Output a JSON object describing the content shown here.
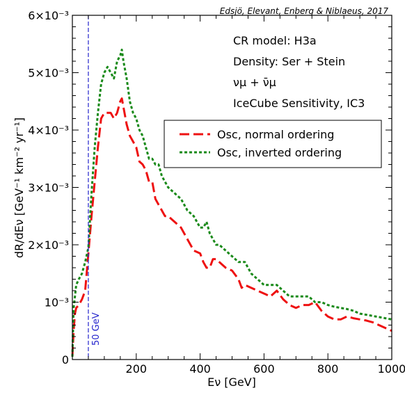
{
  "chart_data": {
    "type": "line",
    "credit": "Edsjö, Elevant, Enberg & Niblaeus, 2017",
    "xlabel": "Eν [GeV]",
    "ylabel": "dR/dEν [GeV⁻¹ km⁻² yr⁻¹]",
    "xlim": [
      0,
      1000
    ],
    "ylim": [
      0,
      0.006
    ],
    "xticks": [
      {
        "value": 200,
        "label": "200"
      },
      {
        "value": 400,
        "label": "400"
      },
      {
        "value": 600,
        "label": "600"
      },
      {
        "value": 800,
        "label": "800"
      },
      {
        "value": 1000,
        "label": "1000"
      }
    ],
    "yticks": [
      {
        "value": 0,
        "label": "0"
      },
      {
        "value": 0.001,
        "label": "10⁻³"
      },
      {
        "value": 0.002,
        "label": "2×10⁻³"
      },
      {
        "value": 0.003,
        "label": "3×10⁻³"
      },
      {
        "value": 0.004,
        "label": "4×10⁻³"
      },
      {
        "value": 0.005,
        "label": "5×10⁻³"
      },
      {
        "value": 0.006,
        "label": "6×10⁻³"
      }
    ],
    "annotations": [
      "CR model: H3a",
      "Density: Ser + Stein",
      "νμ + ν̄μ",
      "IceCube Sensitivity, IC3"
    ],
    "vline": {
      "x": 50,
      "label": "50 GeV",
      "color": "#2222cc"
    },
    "legend_position": "upper-right",
    "series": [
      {
        "name": "Osc, normal ordering",
        "color": "#ee1111",
        "style": "dashed",
        "x": [
          0,
          4,
          8,
          12,
          20,
          30,
          40,
          50,
          60,
          70,
          80,
          90,
          100,
          110,
          120,
          130,
          140,
          150,
          155,
          160,
          170,
          180,
          190,
          200,
          210,
          220,
          230,
          240,
          250,
          260,
          270,
          280,
          290,
          300,
          320,
          340,
          360,
          380,
          400,
          410,
          420,
          430,
          440,
          450,
          460,
          480,
          500,
          520,
          530,
          540,
          560,
          580,
          600,
          620,
          640,
          660,
          680,
          700,
          720,
          740,
          760,
          780,
          800,
          820,
          840,
          860,
          880,
          900,
          920,
          940,
          960,
          980,
          1000
        ],
        "y": [
          5e-05,
          0.0005,
          0.0008,
          0.0009,
          0.00095,
          0.00105,
          0.0012,
          0.00185,
          0.0025,
          0.0031,
          0.0037,
          0.0042,
          0.0043,
          0.0043,
          0.0043,
          0.0042,
          0.0043,
          0.0045,
          0.00455,
          0.0044,
          0.0041,
          0.0039,
          0.0038,
          0.0037,
          0.00345,
          0.0034,
          0.0033,
          0.0031,
          0.0031,
          0.0028,
          0.0027,
          0.0026,
          0.0025,
          0.0025,
          0.0024,
          0.0023,
          0.0021,
          0.0019,
          0.00185,
          0.0017,
          0.0016,
          0.0016,
          0.00175,
          0.00175,
          0.0017,
          0.0016,
          0.00155,
          0.0014,
          0.00125,
          0.0013,
          0.00125,
          0.0012,
          0.00115,
          0.0011,
          0.0012,
          0.00105,
          0.00095,
          0.0009,
          0.00095,
          0.00095,
          0.001,
          0.00085,
          0.00075,
          0.0007,
          0.0007,
          0.00075,
          0.00072,
          0.0007,
          0.00068,
          0.00065,
          0.0006,
          0.00055,
          0.0005
        ]
      },
      {
        "name": "Osc, inverted ordering",
        "color": "#1a8a1a",
        "style": "dotted",
        "x": [
          0,
          4,
          8,
          12,
          20,
          30,
          40,
          50,
          60,
          70,
          80,
          90,
          100,
          110,
          120,
          130,
          140,
          150,
          155,
          160,
          170,
          180,
          190,
          200,
          210,
          220,
          230,
          240,
          250,
          260,
          270,
          280,
          290,
          300,
          320,
          340,
          360,
          380,
          400,
          410,
          420,
          430,
          440,
          450,
          460,
          480,
          500,
          520,
          530,
          540,
          560,
          580,
          600,
          620,
          640,
          660,
          680,
          700,
          720,
          740,
          760,
          780,
          800,
          820,
          840,
          860,
          880,
          900,
          920,
          940,
          960,
          980,
          1000
        ],
        "y": [
          5e-05,
          0.0009,
          0.0011,
          0.0013,
          0.0014,
          0.0015,
          0.0017,
          0.00195,
          0.0029,
          0.0037,
          0.0043,
          0.0048,
          0.005,
          0.0051,
          0.005,
          0.0049,
          0.0052,
          0.0053,
          0.0054,
          0.0052,
          0.0049,
          0.0045,
          0.0043,
          0.0042,
          0.004,
          0.0039,
          0.0037,
          0.0035,
          0.0035,
          0.0034,
          0.0034,
          0.0032,
          0.0031,
          0.003,
          0.0029,
          0.0028,
          0.0026,
          0.0025,
          0.0023,
          0.0023,
          0.0024,
          0.0022,
          0.0021,
          0.002,
          0.002,
          0.0019,
          0.0018,
          0.0017,
          0.0017,
          0.0017,
          0.0015,
          0.0014,
          0.0013,
          0.0013,
          0.0013,
          0.0012,
          0.0011,
          0.0011,
          0.0011,
          0.0011,
          0.001,
          0.001,
          0.00095,
          0.00092,
          0.0009,
          0.00088,
          0.00085,
          0.0008,
          0.00078,
          0.00076,
          0.00074,
          0.00072,
          0.0007
        ]
      }
    ]
  }
}
